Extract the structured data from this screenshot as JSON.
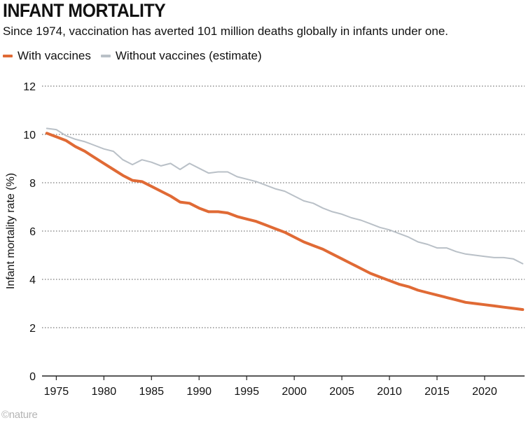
{
  "header": {
    "title": "INFANT MORTALITY",
    "subtitle": "Since 1974, vaccination has averted 101 million deaths globally in infants under one."
  },
  "legend": {
    "items": [
      {
        "label": "With vaccines",
        "color": "#e06a35"
      },
      {
        "label": "Without vaccines (estimate)",
        "color": "#b9c0c7"
      }
    ]
  },
  "footer": {
    "logo": "©nature"
  },
  "chart_data": {
    "type": "line",
    "title": "INFANT MORTALITY",
    "subtitle": "Since 1974, vaccination has averted 101 million deaths globally in infants under one.",
    "xlabel": "",
    "ylabel": "Infant mortality rate (%)",
    "xlim": [
      1973.5,
      2024.2
    ],
    "ylim": [
      0,
      12
    ],
    "x_ticks": [
      1975,
      1980,
      1985,
      1990,
      1995,
      2000,
      2005,
      2010,
      2015,
      2020
    ],
    "y_ticks": [
      0,
      2,
      4,
      6,
      8,
      10,
      12
    ],
    "grid": "horizontal-dotted",
    "legend_position": "top-left",
    "x": [
      1974,
      1975,
      1976,
      1977,
      1978,
      1979,
      1980,
      1981,
      1982,
      1983,
      1984,
      1985,
      1986,
      1987,
      1988,
      1989,
      1990,
      1991,
      1992,
      1993,
      1994,
      1995,
      1996,
      1997,
      1998,
      1999,
      2000,
      2001,
      2002,
      2003,
      2004,
      2005,
      2006,
      2007,
      2008,
      2009,
      2010,
      2011,
      2012,
      2013,
      2014,
      2015,
      2016,
      2017,
      2018,
      2019,
      2020,
      2021,
      2022,
      2023,
      2024
    ],
    "series": [
      {
        "name": "With vaccines",
        "color": "#e06a35",
        "values": [
          10.05,
          9.9,
          9.75,
          9.5,
          9.3,
          9.05,
          8.8,
          8.55,
          8.3,
          8.1,
          8.05,
          7.85,
          7.65,
          7.45,
          7.2,
          7.15,
          6.95,
          6.8,
          6.8,
          6.75,
          6.6,
          6.5,
          6.4,
          6.25,
          6.1,
          5.95,
          5.75,
          5.55,
          5.4,
          5.25,
          5.05,
          4.85,
          4.65,
          4.45,
          4.25,
          4.1,
          3.95,
          3.8,
          3.7,
          3.55,
          3.45,
          3.35,
          3.25,
          3.15,
          3.05,
          3.0,
          2.95,
          2.9,
          2.85,
          2.8,
          2.75
        ]
      },
      {
        "name": "Without vaccines (estimate)",
        "color": "#b9c0c7",
        "values": [
          10.25,
          10.2,
          9.95,
          9.8,
          9.7,
          9.55,
          9.4,
          9.3,
          8.95,
          8.75,
          8.95,
          8.85,
          8.7,
          8.8,
          8.55,
          8.8,
          8.6,
          8.4,
          8.45,
          8.45,
          8.25,
          8.15,
          8.05,
          7.9,
          7.75,
          7.65,
          7.45,
          7.25,
          7.15,
          6.95,
          6.8,
          6.7,
          6.55,
          6.45,
          6.3,
          6.15,
          6.05,
          5.9,
          5.75,
          5.55,
          5.45,
          5.3,
          5.3,
          5.15,
          5.05,
          5.0,
          4.95,
          4.9,
          4.9,
          4.85,
          4.65
        ]
      }
    ]
  }
}
